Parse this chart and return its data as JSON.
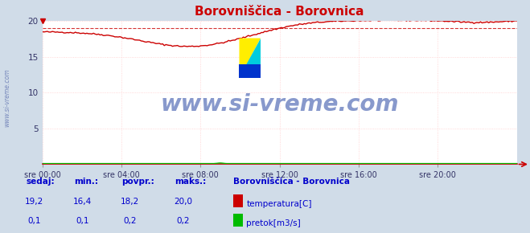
{
  "title": "Borovniščica - Borovnica",
  "bg_color": "#d0dce8",
  "plot_bg_color": "#ffffff",
  "grid_color": "#ffcccc",
  "grid_color_minor": "#ffeeee",
  "x_labels": [
    "sre 00:00",
    "sre 04:00",
    "sre 08:00",
    "sre 12:00",
    "sre 16:00",
    "sre 20:00"
  ],
  "x_ticks": [
    0,
    48,
    96,
    144,
    192,
    240
  ],
  "x_max": 288,
  "y_min": 0,
  "y_max": 20,
  "y_ticks": [
    5,
    10,
    15,
    20
  ],
  "avg_line": 19.0,
  "temp_color": "#cc0000",
  "flow_color": "#00bb00",
  "watermark_text": "www.si-vreme.com",
  "watermark_color": "#8899cc",
  "footer_bg": "#d0dce8",
  "footer_title": "Borovniščica - Borovnica",
  "footer_label1": "temperatura[C]",
  "footer_label2": "pretok[m3/s]",
  "footer_color": "#0000cc",
  "sedaj_label": "sedaj:",
  "min_label": "min.:",
  "povpr_label": "povpr.:",
  "maks_label": "maks.:",
  "temp_sedaj": "19,2",
  "temp_min": "16,4",
  "temp_povpr": "18,2",
  "temp_maks": "20,0",
  "flow_sedaj": "0,1",
  "flow_min": "0,1",
  "flow_povpr": "0,2",
  "flow_maks": "0,2",
  "left_watermark": "www.si-vreme.com",
  "left_watermark_color": "#7788bb"
}
